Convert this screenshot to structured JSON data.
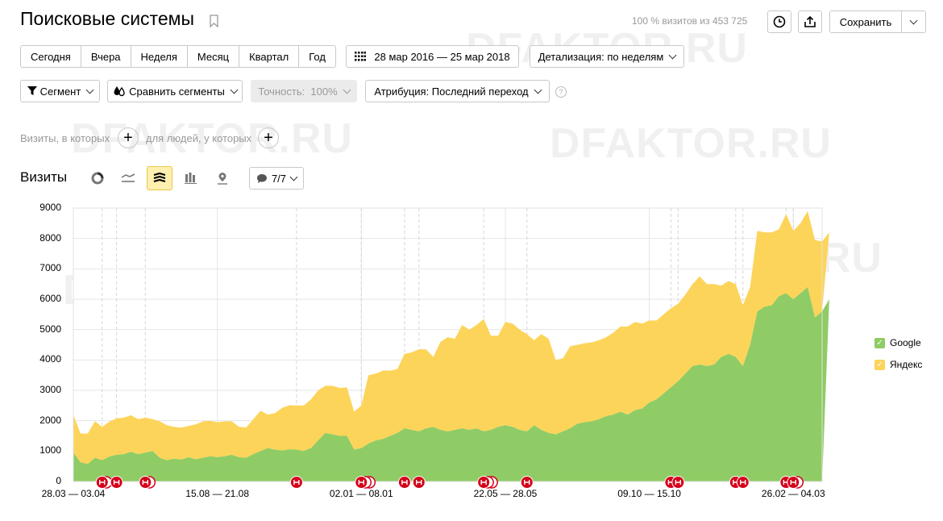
{
  "header": {
    "title": "Поисковые системы",
    "stats": "100 % визитов из 453 725",
    "save_label": "Сохранить"
  },
  "period": {
    "buttons": [
      "Сегодня",
      "Вчера",
      "Неделя",
      "Месяц",
      "Квартал",
      "Год"
    ],
    "date_range": "28 мар 2016 — 25 мар 2018",
    "detail": "Детализация: по неделям"
  },
  "filters": {
    "segment": "Сегмент",
    "compare": "Сравнить сегменты",
    "accuracy": "Точность:  100%",
    "attribution": "Атрибуция: Последний переход",
    "help": "?",
    "visits_where": "Визиты, в которых",
    "people_where": "для людей, у которых"
  },
  "chart_header": {
    "title": "Визиты",
    "annotations_count": "7/7"
  },
  "watermark": "DFAKTOR.RU",
  "colors": {
    "google": "#8fcc65",
    "yandex": "#fdd45a",
    "grid": "#e6e6e6",
    "note": "#d4001a"
  },
  "chart_data": {
    "type": "area",
    "stacked": true,
    "title": "Визиты",
    "ylim": [
      0,
      9000
    ],
    "yticks": [
      0,
      1000,
      2000,
      3000,
      4000,
      5000,
      6000,
      7000,
      8000,
      9000
    ],
    "ytick_labels": [
      "0",
      "1000",
      "2000",
      "3000",
      "4000",
      "5000",
      "6000",
      "7000",
      "8000",
      "9000"
    ],
    "x_weeks": 105,
    "xtick_labels": [
      {
        "week": 0,
        "label": "28.03 — 03.04"
      },
      {
        "week": 20,
        "label": "15.08 — 21.08"
      },
      {
        "week": 40,
        "label": "02.01 — 08.01"
      },
      {
        "week": 60,
        "label": "22.05 — 28.05"
      },
      {
        "week": 80,
        "label": "09.10 — 15.10"
      },
      {
        "week": 100,
        "label": "26.02 — 04.03"
      }
    ],
    "series": [
      {
        "name": "Google",
        "values": [
          950,
          630,
          580,
          780,
          700,
          820,
          880,
          900,
          980,
          900,
          950,
          1000,
          780,
          700,
          750,
          720,
          800,
          730,
          780,
          830,
          800,
          830,
          880,
          800,
          780,
          900,
          1000,
          1100,
          1050,
          1020,
          1060,
          1050,
          1000,
          1100,
          1350,
          1600,
          1550,
          1500,
          1500,
          1050,
          1100,
          1250,
          1350,
          1400,
          1500,
          1600,
          1750,
          1700,
          1650,
          1750,
          1800,
          1700,
          1650,
          1700,
          1750,
          1700,
          1750,
          1650,
          1700,
          1800,
          1850,
          1800,
          1700,
          1650,
          1850,
          1700,
          1600,
          1550,
          1650,
          1750,
          1900,
          1950,
          1980,
          2050,
          2150,
          2200,
          2300,
          2200,
          2350,
          2400,
          2600,
          2700,
          2900,
          3100,
          3300,
          3550,
          3800,
          3850,
          3800,
          3850,
          4100,
          4200,
          4100,
          3800,
          4500,
          5600,
          5750,
          5800,
          6100,
          6200,
          6000,
          6200,
          6400,
          5400,
          5600,
          6000
        ]
      },
      {
        "name": "Яндекс",
        "values": [
          1250,
          950,
          1000,
          1200,
          1100,
          1150,
          1200,
          1200,
          1200,
          1150,
          1150,
          1050,
          1200,
          1150,
          1050,
          1050,
          1030,
          1150,
          1200,
          1170,
          1150,
          1150,
          1100,
          1000,
          1000,
          1150,
          1330,
          1100,
          1200,
          1400,
          1450,
          1450,
          1500,
          1600,
          1650,
          1550,
          1600,
          1580,
          1600,
          1250,
          1400,
          2250,
          2200,
          2250,
          2150,
          2100,
          2450,
          2550,
          2700,
          2600,
          2300,
          2900,
          3100,
          3000,
          3400,
          3300,
          3400,
          3700,
          3100,
          3000,
          3400,
          3400,
          3300,
          3200,
          2800,
          3150,
          3100,
          2450,
          2400,
          2700,
          2600,
          2600,
          2600,
          2600,
          2600,
          2700,
          2800,
          2900,
          2900,
          2800,
          2700,
          2600,
          2600,
          2600,
          2550,
          2600,
          2700,
          2900,
          2700,
          2650,
          2350,
          2400,
          2400,
          2000,
          1900,
          2650,
          2450,
          2400,
          2200,
          2600,
          2250,
          2300,
          2500,
          2550,
          2300,
          2200
        ]
      }
    ],
    "annotations": [
      {
        "week": 4,
        "count": 2
      },
      {
        "week": 6,
        "count": 1
      },
      {
        "week": 10,
        "count": 2
      },
      {
        "week": 31,
        "count": 1
      },
      {
        "week": 40,
        "count": 3
      },
      {
        "week": 46,
        "count": 1
      },
      {
        "week": 48,
        "count": 1
      },
      {
        "week": 57,
        "count": 3
      },
      {
        "week": 63,
        "count": 1
      },
      {
        "week": 83,
        "count": 1
      },
      {
        "week": 84,
        "count": 1
      },
      {
        "week": 92,
        "count": 1
      },
      {
        "week": 93,
        "count": 1
      },
      {
        "week": 99,
        "count": 1
      },
      {
        "week": 100,
        "count": 2
      }
    ],
    "legend": [
      "Google",
      "Яндекс"
    ]
  }
}
